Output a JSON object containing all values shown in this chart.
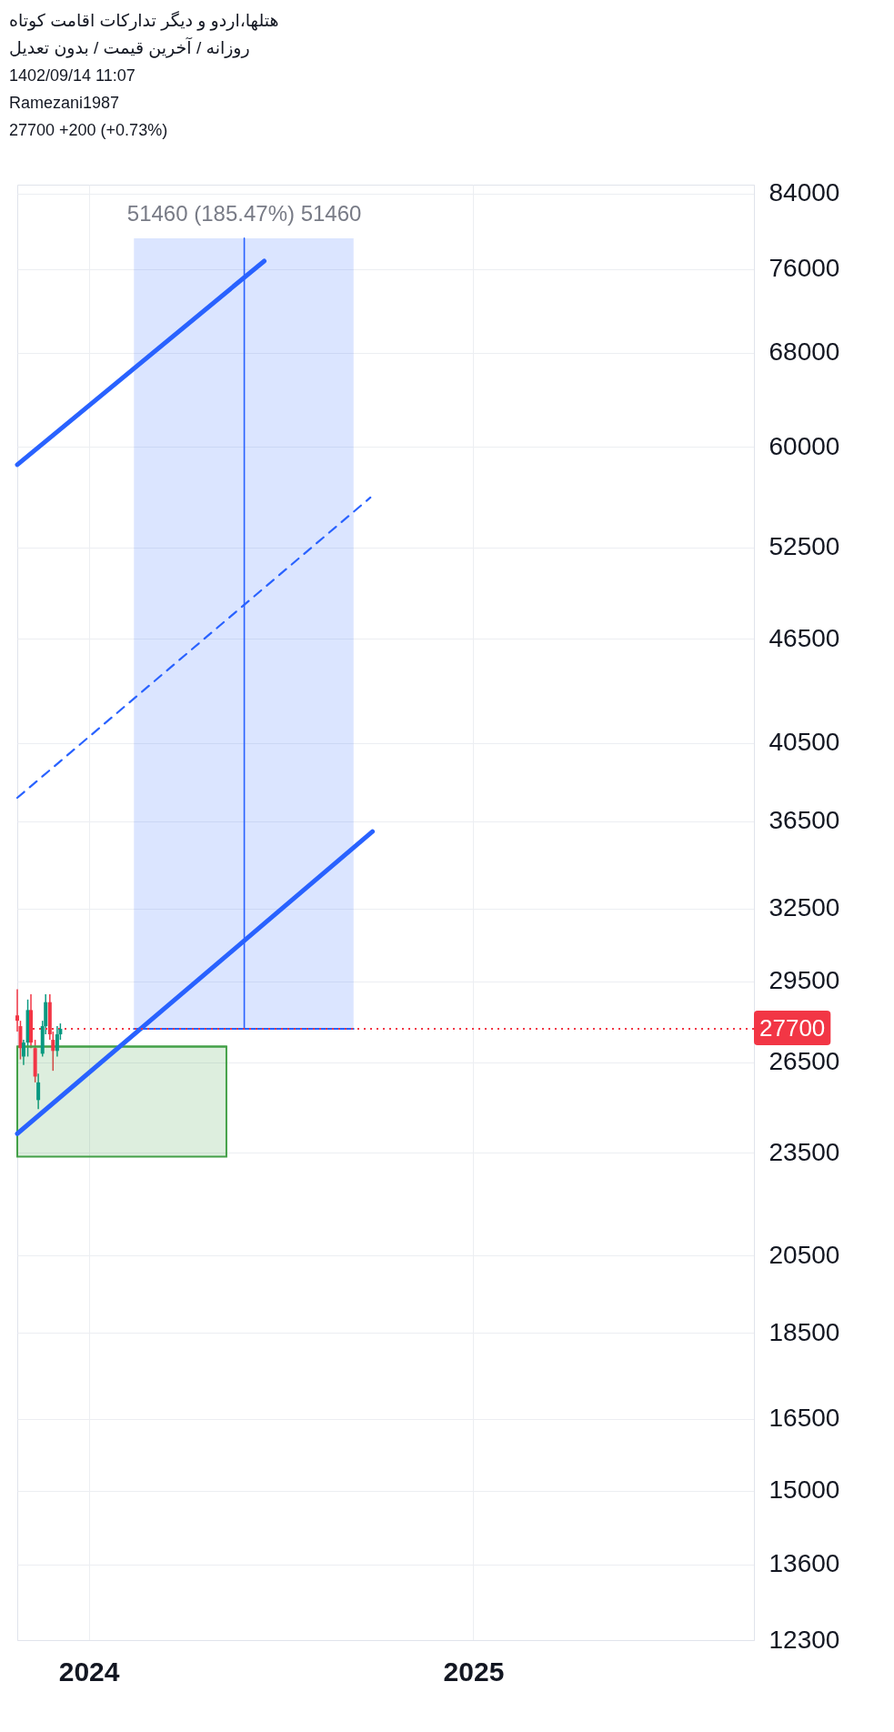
{
  "chart_data": {
    "type": "candlestick",
    "title": "هتلها،اردو و دیگر تدارکات اقامت کوتاه",
    "subtitle": "روزانه / آخرین قیمت / بدون تعدیل",
    "annotations": [
      "1402/09/14 11:07",
      "Ramezani1987",
      "27700  +200 (+0.73%)",
      {
        "text": "51460 (185.47%) 51460",
        "x": "2024-05-28",
        "y": 79160
      }
    ],
    "x": [
      "2023-10-25",
      "2023-10-28",
      "2023-10-31",
      "2023-11-04",
      "2023-11-07",
      "2023-11-11",
      "2023-11-14",
      "2023-11-18",
      "2023-11-21",
      "2023-11-25",
      "2023-11-28",
      "2023-12-02",
      "2023-12-05"
    ],
    "ohlc": [
      [
        28200,
        29200,
        27600,
        28000
      ],
      [
        27800,
        28000,
        26600,
        27000
      ],
      [
        26700,
        27300,
        26400,
        27200
      ],
      [
        27200,
        28800,
        26700,
        28400
      ],
      [
        28400,
        29000,
        27000,
        27200
      ],
      [
        27000,
        27300,
        25800,
        26000
      ],
      [
        25200,
        26100,
        24900,
        25800
      ],
      [
        26800,
        28000,
        26700,
        27800
      ],
      [
        27800,
        29000,
        27500,
        28700
      ],
      [
        28700,
        29000,
        27300,
        27500
      ],
      [
        27300,
        27600,
        26200,
        26900
      ],
      [
        26900,
        27800,
        26700,
        27500
      ],
      [
        27500,
        27900,
        27300,
        27700
      ]
    ],
    "series": [
      {
        "type": "line",
        "color": "#2962ff",
        "x": [
          "2024-02-13",
          "2024-09-09"
        ],
        "values": [
          27700,
          27700
        ],
        "lower": [
          27700,
          27700
        ],
        "upper": [
          79160,
          79160
        ],
        "line_style": "solid"
      },
      {
        "type": "line",
        "color": "#43a047",
        "x": [
          "2023-10-25",
          "2024-05-11"
        ],
        "values": [
          27060,
          27060
        ],
        "lower": [
          23380,
          23380
        ],
        "upper": [
          27060,
          27060
        ],
        "line_style": "solid"
      },
      {
        "type": "line",
        "color": "#2962ff",
        "x": [
          "2023-10-25",
          "2024-06-16"
        ],
        "values": [
          58600,
          76800
        ],
        "line_style": "solid"
      },
      {
        "type": "line",
        "color": "#2962ff",
        "x": [
          "2023-10-25",
          "2024-09-25"
        ],
        "values": [
          37650,
          56100
        ],
        "line_style": "dashed"
      },
      {
        "type": "line",
        "color": "#2962ff",
        "x": [
          "2023-10-25",
          "2024-09-27"
        ],
        "values": [
          24100,
          36000
        ],
        "line_style": "solid"
      },
      {
        "type": "line",
        "color": "#2962ff",
        "x": [
          "2024-05-28",
          "2024-05-28"
        ],
        "values": [
          27700,
          79160
        ],
        "line_style": "solid"
      }
    ],
    "ref_lines": [
      {
        "axis": "y",
        "value": 27700,
        "label": "27700",
        "color": "#f23645",
        "line_style": "dotted"
      }
    ],
    "xlim": [
      "2023-10-25",
      "2025-09-25"
    ],
    "xticks": [
      "2024",
      "2025"
    ],
    "ylim": [
      12300,
      85000
    ],
    "yticks": [
      12300,
      13600,
      15000,
      16500,
      18500,
      20500,
      23500,
      26500,
      29500,
      32500,
      36500,
      40500,
      46500,
      52500,
      60000,
      68000,
      76000,
      84000
    ],
    "log": true,
    "grid": true,
    "legend": false
  }
}
